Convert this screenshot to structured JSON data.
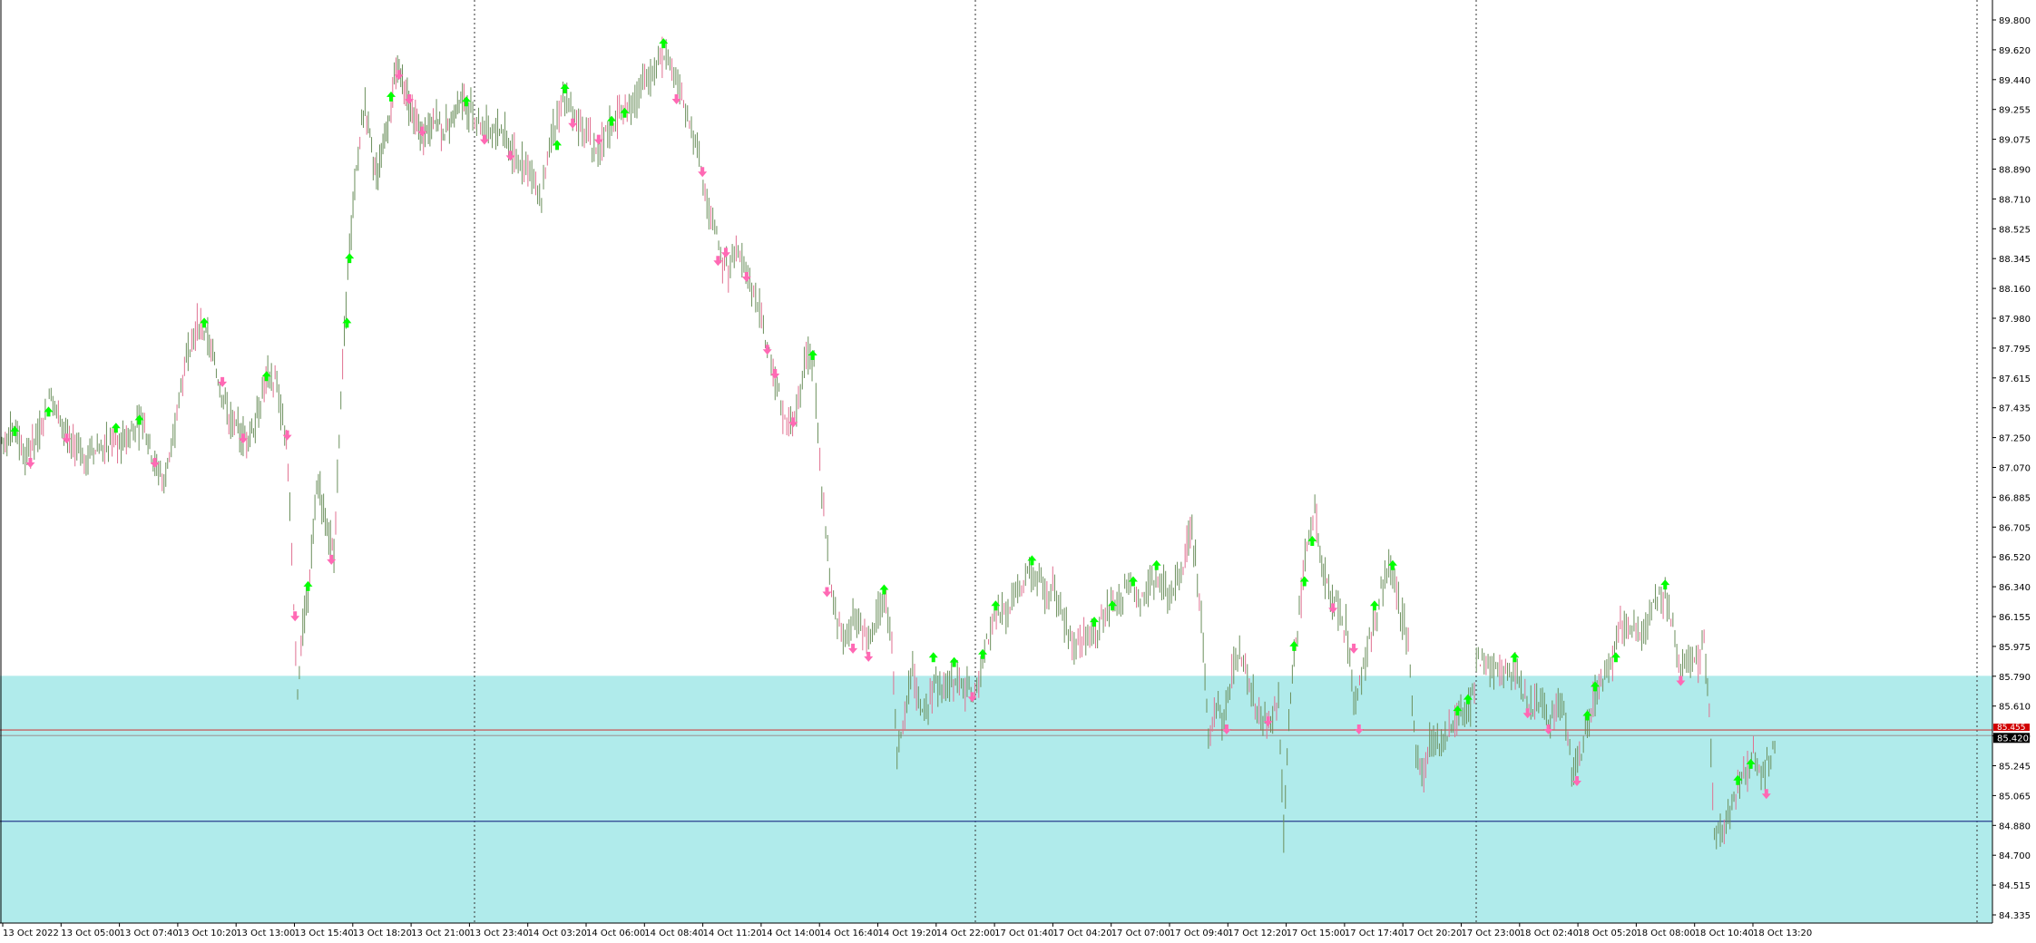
{
  "chart_data": {
    "type": "candlestick",
    "price_axis": {
      "ticks": [
        "89.800",
        "89.620",
        "89.440",
        "89.255",
        "89.075",
        "88.890",
        "88.710",
        "88.525",
        "88.345",
        "88.160",
        "87.980",
        "87.795",
        "87.615",
        "87.435",
        "87.250",
        "87.070",
        "86.885",
        "86.705",
        "86.520",
        "86.340",
        "86.155",
        "85.975",
        "85.790",
        "85.610",
        "85.430",
        "85.245",
        "85.065",
        "84.880",
        "84.700",
        "84.515",
        "84.335"
      ],
      "range": [
        84.26,
        89.95
      ]
    },
    "time_axis": {
      "labels": [
        "13 Oct 2022",
        "13 Oct 05:00",
        "13 Oct 07:40",
        "13 Oct 10:20",
        "13 Oct 13:00",
        "13 Oct 15:40",
        "13 Oct 18:20",
        "13 Oct 21:00",
        "13 Oct 23:40",
        "14 Oct 03:20",
        "14 Oct 06:00",
        "14 Oct 08:40",
        "14 Oct 11:20",
        "14 Oct 14:00",
        "14 Oct 16:40",
        "14 Oct 19:20",
        "14 Oct 22:00",
        "17 Oct 01:40",
        "17 Oct 04:20",
        "17 Oct 07:00",
        "17 Oct 09:40",
        "17 Oct 12:20",
        "17 Oct 15:00",
        "17 Oct 17:40",
        "17 Oct 20:20",
        "17 Oct 23:00",
        "18 Oct 02:40",
        "18 Oct 05:20",
        "18 Oct 08:00",
        "18 Oct 10:40",
        "18 Oct 13:20"
      ]
    },
    "price_path": [
      [
        0,
        87.25
      ],
      [
        12,
        87.3
      ],
      [
        18,
        87.15
      ],
      [
        25,
        87.22
      ],
      [
        32,
        87.4
      ],
      [
        38,
        87.55
      ],
      [
        45,
        87.35
      ],
      [
        55,
        87.2
      ],
      [
        65,
        87.15
      ],
      [
        75,
        87.2
      ],
      [
        85,
        87.25
      ],
      [
        92,
        87.22
      ],
      [
        100,
        87.3
      ],
      [
        110,
        87.35
      ],
      [
        118,
        87.1
      ],
      [
        125,
        87.0
      ],
      [
        132,
        87.2
      ],
      [
        138,
        87.6
      ],
      [
        145,
        87.85
      ],
      [
        152,
        87.98
      ],
      [
        160,
        87.85
      ],
      [
        168,
        87.6
      ],
      [
        175,
        87.4
      ],
      [
        182,
        87.3
      ],
      [
        190,
        87.25
      ],
      [
        198,
        87.45
      ],
      [
        205,
        87.65
      ],
      [
        212,
        87.6
      ],
      [
        218,
        87.3
      ],
      [
        222,
        86.9
      ],
      [
        225,
        86.2
      ],
      [
        228,
        85.7
      ],
      [
        232,
        86.1
      ],
      [
        236,
        86.3
      ],
      [
        240,
        86.7
      ],
      [
        244,
        87.0
      ],
      [
        248,
        86.8
      ],
      [
        252,
        86.65
      ],
      [
        256,
        86.55
      ],
      [
        260,
        87.3
      ],
      [
        264,
        87.9
      ],
      [
        268,
        88.4
      ],
      [
        272,
        88.8
      ],
      [
        276,
        89.1
      ],
      [
        280,
        89.3
      ],
      [
        285,
        89.0
      ],
      [
        290,
        88.9
      ],
      [
        295,
        89.1
      ],
      [
        300,
        89.35
      ],
      [
        305,
        89.55
      ],
      [
        310,
        89.45
      ],
      [
        315,
        89.3
      ],
      [
        320,
        89.2
      ],
      [
        325,
        89.1
      ],
      [
        330,
        89.2
      ],
      [
        335,
        89.25
      ],
      [
        340,
        89.15
      ],
      [
        345,
        89.2
      ],
      [
        350,
        89.3
      ],
      [
        355,
        89.35
      ],
      [
        360,
        89.3
      ],
      [
        366,
        89.25
      ],
      [
        372,
        89.2
      ],
      [
        378,
        89.15
      ],
      [
        385,
        89.18
      ],
      [
        392,
        89.05
      ],
      [
        398,
        89.0
      ],
      [
        404,
        88.95
      ],
      [
        410,
        88.85
      ],
      [
        416,
        88.75
      ],
      [
        422,
        89.05
      ],
      [
        428,
        89.25
      ],
      [
        434,
        89.4
      ],
      [
        440,
        89.25
      ],
      [
        446,
        89.2
      ],
      [
        452,
        89.15
      ],
      [
        458,
        89.05
      ],
      [
        464,
        89.1
      ],
      [
        470,
        89.2
      ],
      [
        476,
        89.25
      ],
      [
        482,
        89.3
      ],
      [
        488,
        89.35
      ],
      [
        494,
        89.45
      ],
      [
        500,
        89.5
      ],
      [
        506,
        89.6
      ],
      [
        512,
        89.65
      ],
      [
        518,
        89.55
      ],
      [
        524,
        89.35
      ],
      [
        530,
        89.2
      ],
      [
        536,
        89.1
      ],
      [
        542,
        88.75
      ],
      [
        548,
        88.6
      ],
      [
        554,
        88.4
      ],
      [
        560,
        88.3
      ],
      [
        566,
        88.45
      ],
      [
        572,
        88.3
      ],
      [
        578,
        88.2
      ],
      [
        584,
        88.05
      ],
      [
        590,
        87.8
      ],
      [
        596,
        87.6
      ],
      [
        602,
        87.4
      ],
      [
        608,
        87.35
      ],
      [
        614,
        87.5
      ],
      [
        620,
        87.8
      ],
      [
        626,
        87.7
      ],
      [
        632,
        86.9
      ],
      [
        638,
        86.4
      ],
      [
        644,
        86.1
      ],
      [
        650,
        86.0
      ],
      [
        656,
        86.2
      ],
      [
        662,
        86.1
      ],
      [
        668,
        86.0
      ],
      [
        674,
        86.15
      ],
      [
        680,
        86.3
      ],
      [
        686,
        86.0
      ],
      [
        690,
        85.3
      ],
      [
        696,
        85.6
      ],
      [
        702,
        85.8
      ],
      [
        708,
        85.55
      ],
      [
        714,
        85.6
      ],
      [
        720,
        85.75
      ],
      [
        726,
        85.7
      ],
      [
        732,
        85.75
      ],
      [
        738,
        85.8
      ],
      [
        744,
        85.7
      ],
      [
        750,
        85.65
      ],
      [
        756,
        85.9
      ],
      [
        762,
        86.1
      ],
      [
        768,
        86.2
      ],
      [
        774,
        86.15
      ],
      [
        780,
        86.3
      ],
      [
        786,
        86.35
      ],
      [
        792,
        86.45
      ],
      [
        798,
        86.4
      ],
      [
        804,
        86.3
      ],
      [
        810,
        86.35
      ],
      [
        816,
        86.2
      ],
      [
        822,
        86.05
      ],
      [
        828,
        85.95
      ],
      [
        834,
        86.0
      ],
      [
        840,
        86.05
      ],
      [
        846,
        86.1
      ],
      [
        852,
        86.2
      ],
      [
        858,
        86.25
      ],
      [
        864,
        86.3
      ],
      [
        870,
        86.35
      ],
      [
        876,
        86.25
      ],
      [
        882,
        86.3
      ],
      [
        888,
        86.4
      ],
      [
        894,
        86.35
      ],
      [
        900,
        86.3
      ],
      [
        906,
        86.4
      ],
      [
        912,
        86.55
      ],
      [
        916,
        86.7
      ],
      [
        920,
        86.5
      ],
      [
        926,
        86.0
      ],
      [
        930,
        85.4
      ],
      [
        936,
        85.6
      ],
      [
        942,
        85.5
      ],
      [
        948,
        85.8
      ],
      [
        954,
        85.95
      ],
      [
        960,
        85.8
      ],
      [
        966,
        85.6
      ],
      [
        972,
        85.55
      ],
      [
        978,
        85.5
      ],
      [
        984,
        85.7
      ],
      [
        988,
        84.8
      ],
      [
        992,
        85.5
      ],
      [
        996,
        85.9
      ],
      [
        1000,
        86.2
      ],
      [
        1006,
        86.6
      ],
      [
        1012,
        86.8
      ],
      [
        1016,
        86.5
      ],
      [
        1020,
        86.4
      ],
      [
        1024,
        86.25
      ],
      [
        1030,
        86.2
      ],
      [
        1036,
        86.1
      ],
      [
        1042,
        85.6
      ],
      [
        1048,
        85.8
      ],
      [
        1054,
        86.0
      ],
      [
        1060,
        86.2
      ],
      [
        1066,
        86.4
      ],
      [
        1072,
        86.45
      ],
      [
        1078,
        86.2
      ],
      [
        1084,
        86.0
      ],
      [
        1090,
        85.3
      ],
      [
        1096,
        85.2
      ],
      [
        1102,
        85.4
      ],
      [
        1108,
        85.35
      ],
      [
        1114,
        85.4
      ],
      [
        1120,
        85.5
      ],
      [
        1126,
        85.55
      ],
      [
        1132,
        85.6
      ],
      [
        1138,
        85.9
      ],
      [
        1144,
        85.85
      ],
      [
        1150,
        85.8
      ],
      [
        1156,
        85.82
      ],
      [
        1162,
        85.85
      ],
      [
        1168,
        85.8
      ],
      [
        1174,
        85.7
      ],
      [
        1180,
        85.6
      ],
      [
        1186,
        85.65
      ],
      [
        1192,
        85.5
      ],
      [
        1198,
        85.6
      ],
      [
        1204,
        85.55
      ],
      [
        1210,
        85.2
      ],
      [
        1216,
        85.25
      ],
      [
        1222,
        85.5
      ],
      [
        1228,
        85.65
      ],
      [
        1234,
        85.75
      ],
      [
        1240,
        85.85
      ],
      [
        1246,
        86.1
      ],
      [
        1252,
        86.05
      ],
      [
        1258,
        86.1
      ],
      [
        1264,
        86.05
      ],
      [
        1270,
        86.15
      ],
      [
        1276,
        86.25
      ],
      [
        1282,
        86.3
      ],
      [
        1288,
        86.1
      ],
      [
        1294,
        85.8
      ],
      [
        1300,
        85.9
      ],
      [
        1306,
        85.85
      ],
      [
        1312,
        86.0
      ],
      [
        1316,
        85.6
      ],
      [
        1320,
        84.8
      ],
      [
        1326,
        84.85
      ],
      [
        1332,
        84.95
      ],
      [
        1338,
        85.1
      ],
      [
        1344,
        85.2
      ],
      [
        1350,
        85.3
      ],
      [
        1356,
        85.15
      ],
      [
        1362,
        85.25
      ],
      [
        1368,
        85.42
      ]
    ],
    "arrows_up": [
      [
        10,
        87.28
      ],
      [
        36,
        87.4
      ],
      [
        88,
        87.3
      ],
      [
        106,
        87.35
      ],
      [
        156,
        87.95
      ],
      [
        204,
        87.62
      ],
      [
        236,
        86.32
      ],
      [
        266,
        87.95
      ],
      [
        268,
        88.35
      ],
      [
        300,
        89.35
      ],
      [
        358,
        89.32
      ],
      [
        428,
        89.05
      ],
      [
        434,
        89.4
      ],
      [
        470,
        89.2
      ],
      [
        480,
        89.25
      ],
      [
        510,
        89.68
      ],
      [
        625,
        87.75
      ],
      [
        680,
        86.3
      ],
      [
        718,
        85.88
      ],
      [
        734,
        85.85
      ],
      [
        756,
        85.9
      ],
      [
        766,
        86.2
      ],
      [
        794,
        86.48
      ],
      [
        842,
        86.1
      ],
      [
        856,
        86.2
      ],
      [
        872,
        86.35
      ],
      [
        890,
        86.45
      ],
      [
        996,
        85.95
      ],
      [
        1004,
        86.35
      ],
      [
        1010,
        86.6
      ],
      [
        1058,
        86.2
      ],
      [
        1072,
        86.45
      ],
      [
        1122,
        85.55
      ],
      [
        1130,
        85.62
      ],
      [
        1166,
        85.88
      ],
      [
        1222,
        85.52
      ],
      [
        1228,
        85.7
      ],
      [
        1244,
        85.88
      ],
      [
        1282,
        86.33
      ],
      [
        1338,
        85.12
      ],
      [
        1348,
        85.22
      ]
    ],
    "arrows_down": [
      [
        22,
        87.15
      ],
      [
        50,
        87.3
      ],
      [
        118,
        87.15
      ],
      [
        170,
        87.65
      ],
      [
        186,
        87.3
      ],
      [
        220,
        87.32
      ],
      [
        226,
        86.2
      ],
      [
        254,
        86.55
      ],
      [
        306,
        89.55
      ],
      [
        314,
        89.4
      ],
      [
        324,
        89.2
      ],
      [
        372,
        89.15
      ],
      [
        392,
        89.05
      ],
      [
        440,
        89.25
      ],
      [
        460,
        89.15
      ],
      [
        520,
        89.4
      ],
      [
        540,
        88.95
      ],
      [
        552,
        88.4
      ],
      [
        558,
        88.45
      ],
      [
        574,
        88.3
      ],
      [
        590,
        87.85
      ],
      [
        596,
        87.7
      ],
      [
        610,
        87.4
      ],
      [
        636,
        86.35
      ],
      [
        656,
        86.0
      ],
      [
        668,
        85.95
      ],
      [
        748,
        85.7
      ],
      [
        944,
        85.5
      ],
      [
        976,
        85.55
      ],
      [
        1026,
        86.25
      ],
      [
        1042,
        86.0
      ],
      [
        1046,
        85.5
      ],
      [
        1176,
        85.6
      ],
      [
        1192,
        85.5
      ],
      [
        1214,
        85.18
      ],
      [
        1294,
        85.8
      ],
      [
        1360,
        85.1
      ]
    ],
    "zone": {
      "from": 84.26,
      "to": 85.79,
      "color": "#b0ebeb"
    },
    "lines": [
      {
        "price": 85.455,
        "color": "#cc4444"
      },
      {
        "price": 85.42,
        "color": "#a0a0a0"
      },
      {
        "price": 84.89,
        "color": "#2a3f8f"
      }
    ],
    "current_price_labels": [
      "85.455",
      "85.420"
    ],
    "colors": {
      "candle": "#6b8f5c",
      "candle_pink": "#e07090",
      "arrow_up": "#00ff00",
      "arrow_down": "#ff69b4",
      "axis": "#000000"
    }
  }
}
